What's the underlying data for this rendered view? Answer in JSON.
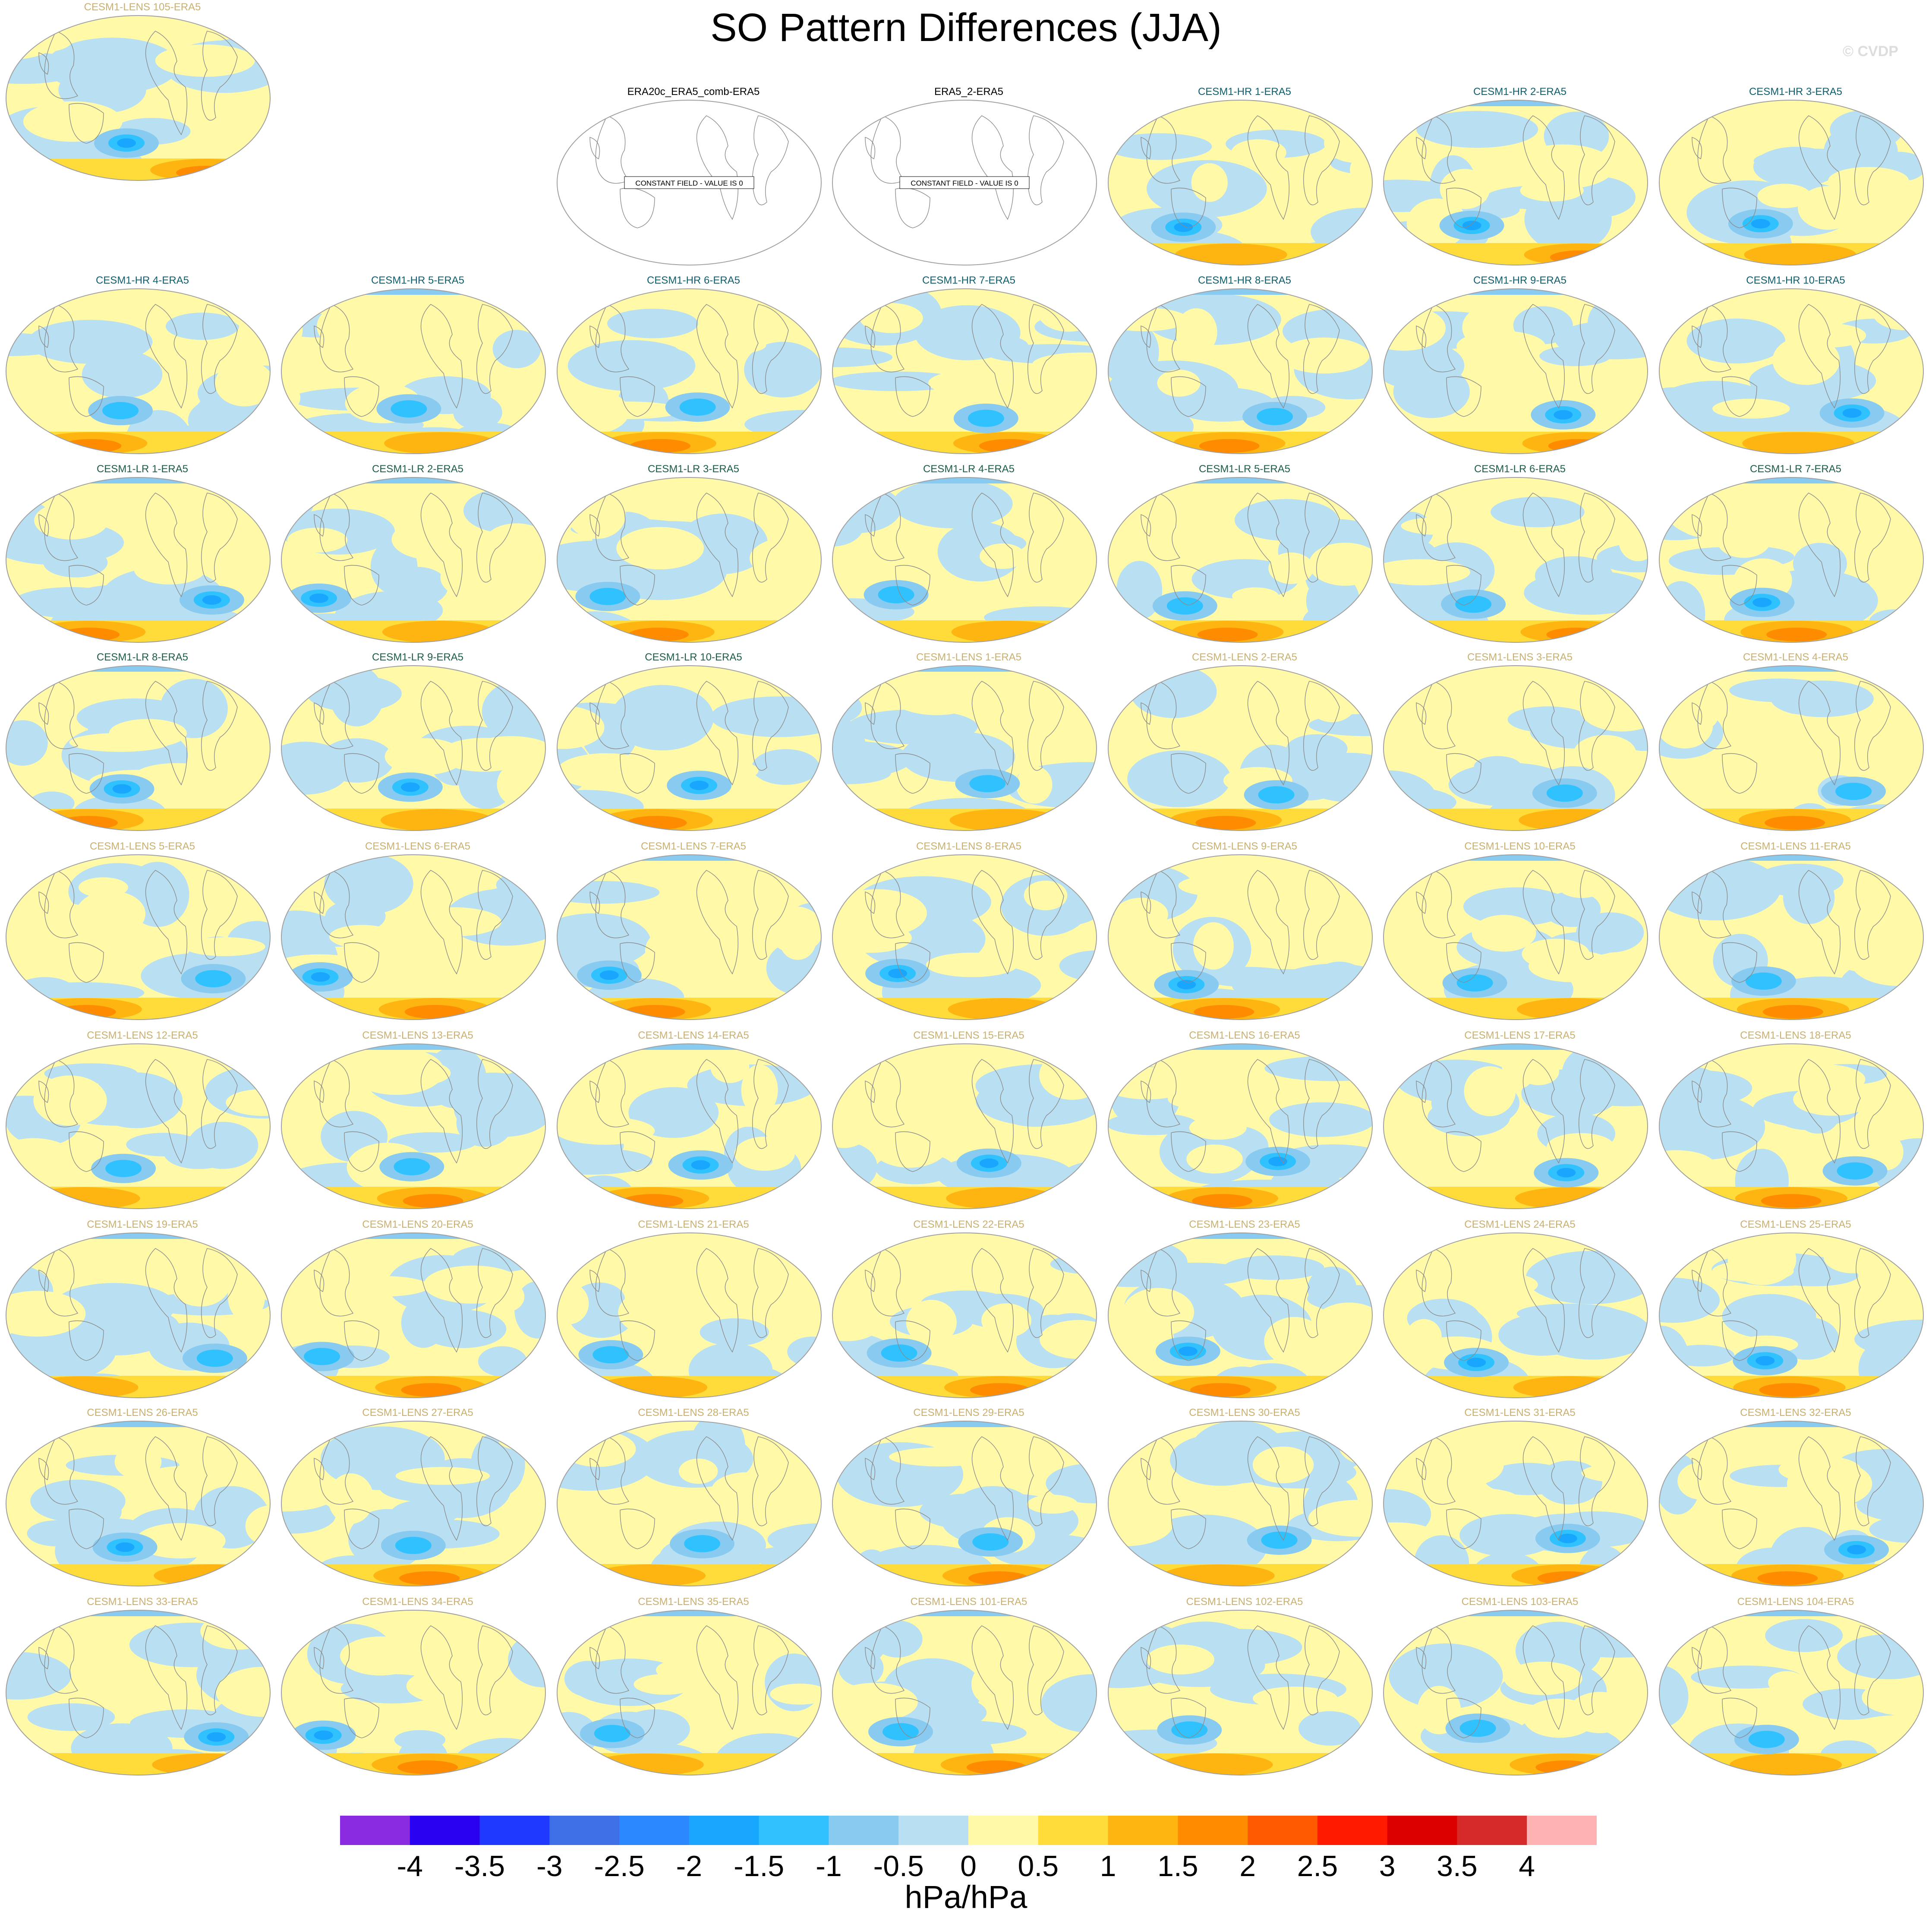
{
  "title": "SO Pattern Differences (JJA)",
  "watermark": "© CVDP",
  "units": "hPa/hPa",
  "legend": {
    "colors": [
      "#8a2be2",
      "#2a00f0",
      "#2039ff",
      "#3f6fe6",
      "#2b88ff",
      "#18a6ff",
      "#2fc2ff",
      "#88caf0",
      "#b9e0f2",
      "#fff9a8",
      "#ffdc3a",
      "#ffb511",
      "#ff8c00",
      "#ff5a00",
      "#ff1a00",
      "#dd0000",
      "#d62a2a",
      "#ffb2b2"
    ],
    "labels": [
      "-4",
      "-3.5",
      "-3",
      "-2.5",
      "-2",
      "-1.5",
      "-1",
      "-0.5",
      "0",
      "0.5",
      "1",
      "1.5",
      "2",
      "2.5",
      "3",
      "3.5",
      "4"
    ]
  },
  "constant_field_text": "CONSTANT FIELD - VALUE IS 0",
  "panels": [
    {
      "label": "ERA20c_ERA5_comb-ERA5",
      "group": "obs",
      "constant": true
    },
    {
      "label": "ERA5_2-ERA5",
      "group": "obs",
      "constant": true
    },
    {
      "label": "CESM1-HR 1-ERA5",
      "group": "hr"
    },
    {
      "label": "CESM1-HR 2-ERA5",
      "group": "hr"
    },
    {
      "label": "CESM1-HR 3-ERA5",
      "group": "hr"
    },
    {
      "label": "CESM1-HR 4-ERA5",
      "group": "hr"
    },
    {
      "label": "CESM1-HR 5-ERA5",
      "group": "hr"
    },
    {
      "label": "CESM1-HR 6-ERA5",
      "group": "hr"
    },
    {
      "label": "CESM1-HR 7-ERA5",
      "group": "hr"
    },
    {
      "label": "CESM1-HR 8-ERA5",
      "group": "hr"
    },
    {
      "label": "CESM1-HR 9-ERA5",
      "group": "hr"
    },
    {
      "label": "CESM1-HR 10-ERA5",
      "group": "hr"
    },
    {
      "label": "CESM1-LR 1-ERA5",
      "group": "lr"
    },
    {
      "label": "CESM1-LR 2-ERA5",
      "group": "lr"
    },
    {
      "label": "CESM1-LR 3-ERA5",
      "group": "lr"
    },
    {
      "label": "CESM1-LR 4-ERA5",
      "group": "lr"
    },
    {
      "label": "CESM1-LR 5-ERA5",
      "group": "lr"
    },
    {
      "label": "CESM1-LR 6-ERA5",
      "group": "lr"
    },
    {
      "label": "CESM1-LR 7-ERA5",
      "group": "lr"
    },
    {
      "label": "CESM1-LR 8-ERA5",
      "group": "lr"
    },
    {
      "label": "CESM1-LR 9-ERA5",
      "group": "lr"
    },
    {
      "label": "CESM1-LR 10-ERA5",
      "group": "lr"
    },
    {
      "label": "CESM1-LENS 1-ERA5",
      "group": "lens"
    },
    {
      "label": "CESM1-LENS 2-ERA5",
      "group": "lens"
    },
    {
      "label": "CESM1-LENS 3-ERA5",
      "group": "lens"
    },
    {
      "label": "CESM1-LENS 4-ERA5",
      "group": "lens"
    },
    {
      "label": "CESM1-LENS 5-ERA5",
      "group": "lens"
    },
    {
      "label": "CESM1-LENS 6-ERA5",
      "group": "lens"
    },
    {
      "label": "CESM1-LENS 7-ERA5",
      "group": "lens"
    },
    {
      "label": "CESM1-LENS 8-ERA5",
      "group": "lens"
    },
    {
      "label": "CESM1-LENS 9-ERA5",
      "group": "lens"
    },
    {
      "label": "CESM1-LENS 10-ERA5",
      "group": "lens"
    },
    {
      "label": "CESM1-LENS 11-ERA5",
      "group": "lens"
    },
    {
      "label": "CESM1-LENS 12-ERA5",
      "group": "lens"
    },
    {
      "label": "CESM1-LENS 13-ERA5",
      "group": "lens"
    },
    {
      "label": "CESM1-LENS 14-ERA5",
      "group": "lens"
    },
    {
      "label": "CESM1-LENS 15-ERA5",
      "group": "lens"
    },
    {
      "label": "CESM1-LENS 16-ERA5",
      "group": "lens"
    },
    {
      "label": "CESM1-LENS 17-ERA5",
      "group": "lens"
    },
    {
      "label": "CESM1-LENS 18-ERA5",
      "group": "lens"
    },
    {
      "label": "CESM1-LENS 19-ERA5",
      "group": "lens"
    },
    {
      "label": "CESM1-LENS 20-ERA5",
      "group": "lens"
    },
    {
      "label": "CESM1-LENS 21-ERA5",
      "group": "lens"
    },
    {
      "label": "CESM1-LENS 22-ERA5",
      "group": "lens"
    },
    {
      "label": "CESM1-LENS 23-ERA5",
      "group": "lens"
    },
    {
      "label": "CESM1-LENS 24-ERA5",
      "group": "lens"
    },
    {
      "label": "CESM1-LENS 25-ERA5",
      "group": "lens"
    },
    {
      "label": "CESM1-LENS 26-ERA5",
      "group": "lens"
    },
    {
      "label": "CESM1-LENS 27-ERA5",
      "group": "lens"
    },
    {
      "label": "CESM1-LENS 28-ERA5",
      "group": "lens"
    },
    {
      "label": "CESM1-LENS 29-ERA5",
      "group": "lens"
    },
    {
      "label": "CESM1-LENS 30-ERA5",
      "group": "lens"
    },
    {
      "label": "CESM1-LENS 31-ERA5",
      "group": "lens"
    },
    {
      "label": "CESM1-LENS 32-ERA5",
      "group": "lens"
    },
    {
      "label": "CESM1-LENS 33-ERA5",
      "group": "lens"
    },
    {
      "label": "CESM1-LENS 34-ERA5",
      "group": "lens"
    },
    {
      "label": "CESM1-LENS 35-ERA5",
      "group": "lens"
    },
    {
      "label": "CESM1-LENS 101-ERA5",
      "group": "lens"
    },
    {
      "label": "CESM1-LENS 102-ERA5",
      "group": "lens"
    },
    {
      "label": "CESM1-LENS 103-ERA5",
      "group": "lens"
    },
    {
      "label": "CESM1-LENS 104-ERA5",
      "group": "lens"
    },
    {
      "label": "CESM1-LENS 105-ERA5",
      "group": "lens"
    }
  ],
  "group_colors": {
    "obs": "#000000",
    "hr": "#0e5f6e",
    "lr": "#1b5e44",
    "lens": "#c9b070"
  }
}
